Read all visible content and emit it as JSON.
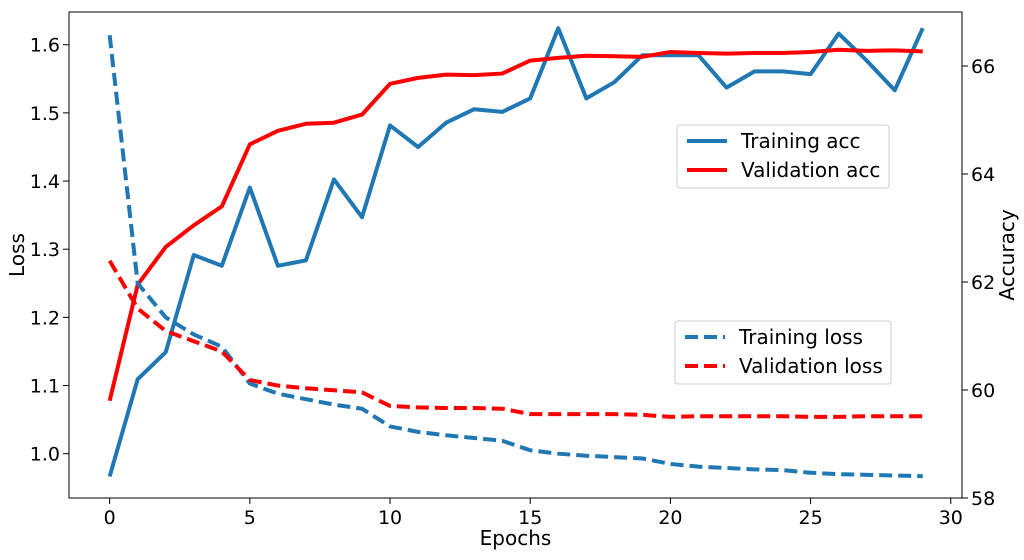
{
  "chart_data": {
    "type": "line",
    "xlabel": "Epochs",
    "ylabel_left": "Loss",
    "ylabel_right": "Accuracy",
    "x": [
      0,
      1,
      2,
      3,
      4,
      5,
      6,
      7,
      8,
      9,
      10,
      11,
      12,
      13,
      14,
      15,
      16,
      17,
      18,
      19,
      20,
      21,
      22,
      23,
      24,
      25,
      26,
      27,
      28,
      29
    ],
    "xlim": [
      -1.45,
      30.4
    ],
    "ylim_left": [
      0.935,
      1.648
    ],
    "ylim_right": [
      58,
      67
    ],
    "x_ticks": [
      0,
      5,
      10,
      15,
      20,
      25,
      30
    ],
    "y_ticks_left": [
      1.0,
      1.1,
      1.2,
      1.3,
      1.4,
      1.5,
      1.6
    ],
    "y_ticks_right": [
      58,
      60,
      62,
      64,
      66
    ],
    "x_tick_labels": [
      "0",
      "5",
      "10",
      "15",
      "20",
      "25",
      "30"
    ],
    "y_tick_labels_left": [
      "1.0",
      "1.1",
      "1.2",
      "1.3",
      "1.4",
      "1.5",
      "1.6"
    ],
    "y_tick_labels_right": [
      "58",
      "60",
      "62",
      "64",
      "66"
    ],
    "grid": false,
    "series": [
      {
        "name": "Training acc",
        "axis": "right",
        "color": "#1f77b4",
        "style": "solid",
        "values": [
          58.4,
          60.2,
          60.7,
          62.5,
          62.3,
          63.75,
          62.3,
          62.4,
          63.9,
          63.2,
          64.9,
          64.5,
          64.95,
          65.2,
          65.15,
          65.4,
          66.7,
          65.4,
          65.7,
          66.2,
          66.2,
          66.2,
          65.6,
          65.9,
          65.9,
          65.85,
          66.6,
          66.1,
          65.55,
          66.7
        ]
      },
      {
        "name": "Validation acc",
        "axis": "right",
        "color": "#ff0000",
        "style": "solid",
        "values": [
          59.8,
          61.95,
          62.65,
          63.05,
          63.4,
          64.55,
          64.8,
          64.93,
          64.95,
          65.1,
          65.67,
          65.78,
          65.84,
          65.83,
          65.86,
          66.1,
          66.15,
          66.19,
          66.18,
          66.17,
          66.26,
          66.24,
          66.23,
          66.24,
          66.24,
          66.26,
          66.3,
          66.28,
          66.29,
          66.27
        ]
      },
      {
        "name": "Training loss",
        "axis": "left",
        "color": "#1f77b4",
        "style": "dashed",
        "values": [
          1.614,
          1.25,
          1.2,
          1.175,
          1.157,
          1.103,
          1.088,
          1.08,
          1.072,
          1.066,
          1.04,
          1.032,
          1.027,
          1.023,
          1.019,
          1.005,
          1.0,
          0.997,
          0.995,
          0.993,
          0.985,
          0.981,
          0.979,
          0.977,
          0.976,
          0.972,
          0.97,
          0.969,
          0.968,
          0.967
        ]
      },
      {
        "name": "Validation loss",
        "axis": "left",
        "color": "#ff0000",
        "style": "dashed",
        "values": [
          1.283,
          1.213,
          1.18,
          1.165,
          1.15,
          1.108,
          1.1,
          1.096,
          1.093,
          1.09,
          1.07,
          1.068,
          1.067,
          1.067,
          1.066,
          1.058,
          1.058,
          1.058,
          1.058,
          1.057,
          1.054,
          1.055,
          1.055,
          1.055,
          1.055,
          1.054,
          1.054,
          1.055,
          1.055,
          1.055
        ]
      }
    ],
    "legends": [
      {
        "placement": "center-right",
        "entries": [
          "Training acc",
          "Validation acc"
        ]
      },
      {
        "placement": "lower-right",
        "entries": [
          "Training loss",
          "Validation loss"
        ]
      }
    ]
  }
}
